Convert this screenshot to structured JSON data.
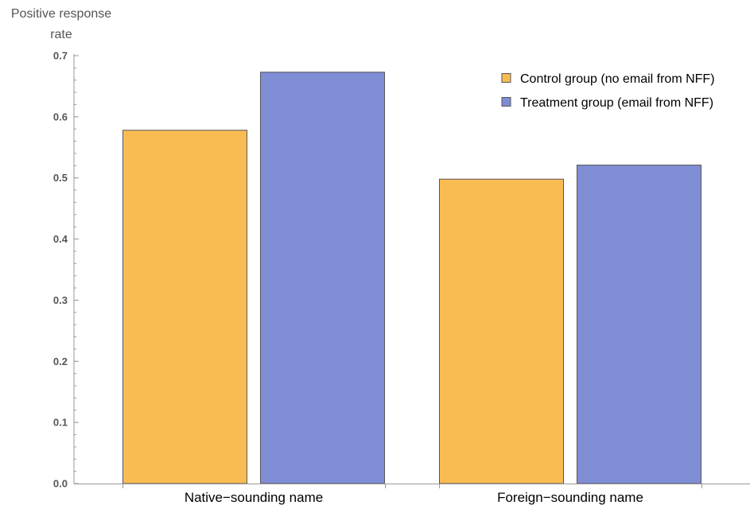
{
  "chart_data": {
    "type": "bar",
    "title": "",
    "ylabel_lines": [
      "Positive response",
      "rate"
    ],
    "xlabel": "",
    "categories": [
      "Native−sounding name",
      "Foreign−sounding name"
    ],
    "series": [
      {
        "name": "Control group (no email from NFF)",
        "color": "#F9BC53",
        "values": [
          0.578,
          0.498
        ]
      },
      {
        "name": "Treatment group (email from NFF)",
        "color": "#7F8DD4",
        "values": [
          0.673,
          0.521
        ]
      }
    ],
    "ylim": [
      0,
      0.7
    ],
    "yticks": [
      0.0,
      0.1,
      0.2,
      0.3,
      0.4,
      0.5,
      0.6,
      0.7
    ],
    "ytick_labels": [
      "0.0",
      "0.1",
      "0.2",
      "0.3",
      "0.4",
      "0.5",
      "0.6",
      "0.7"
    ],
    "minor_ticks_per_major": 5,
    "bar_edge_color": "#555555",
    "axis_color": "#999999",
    "grid": false,
    "legend_position": "top-right"
  }
}
